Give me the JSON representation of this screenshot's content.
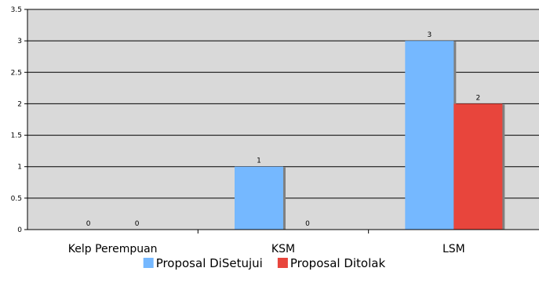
{
  "chart_data": {
    "type": "bar",
    "categories": [
      "Kelp Perempuan",
      "KSM",
      "LSM"
    ],
    "series": [
      {
        "name": "Proposal DiSetujui",
        "values": [
          0,
          1,
          3
        ],
        "color": "#75b8ff"
      },
      {
        "name": "Proposal Ditolak",
        "values": [
          0,
          0,
          2
        ],
        "color": "#e8453c"
      }
    ],
    "ylim": [
      0,
      3.5
    ],
    "yticks": [
      "0",
      "0.5",
      "1",
      "1.5",
      "2",
      "2.5",
      "3",
      "3.5"
    ],
    "grid": true,
    "plot_background": "#d9d9d9",
    "legend_position": "bottom"
  }
}
